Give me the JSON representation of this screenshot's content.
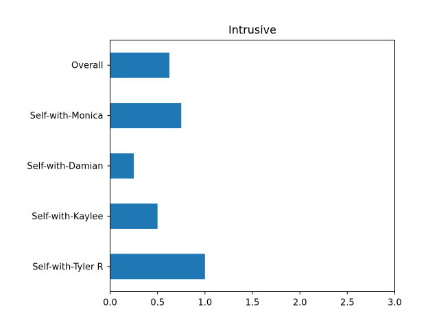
{
  "chart_data": {
    "type": "bar",
    "orientation": "horizontal",
    "title": "Intrusive",
    "xlabel": "",
    "ylabel": "",
    "categories": [
      "Overall",
      "Self-with-Monica",
      "Self-with-Damian",
      "Self-with-Kaylee",
      "Self-with-Tyler R"
    ],
    "values": [
      0.625,
      0.75,
      0.25,
      0.5,
      1.0
    ],
    "xlim": [
      0,
      3
    ],
    "xticks": [
      "0.0",
      "0.5",
      "1.0",
      "1.5",
      "2.0",
      "2.5",
      "3.0"
    ],
    "grid": false,
    "legend": "none",
    "bar_color": "#1f77b4"
  }
}
